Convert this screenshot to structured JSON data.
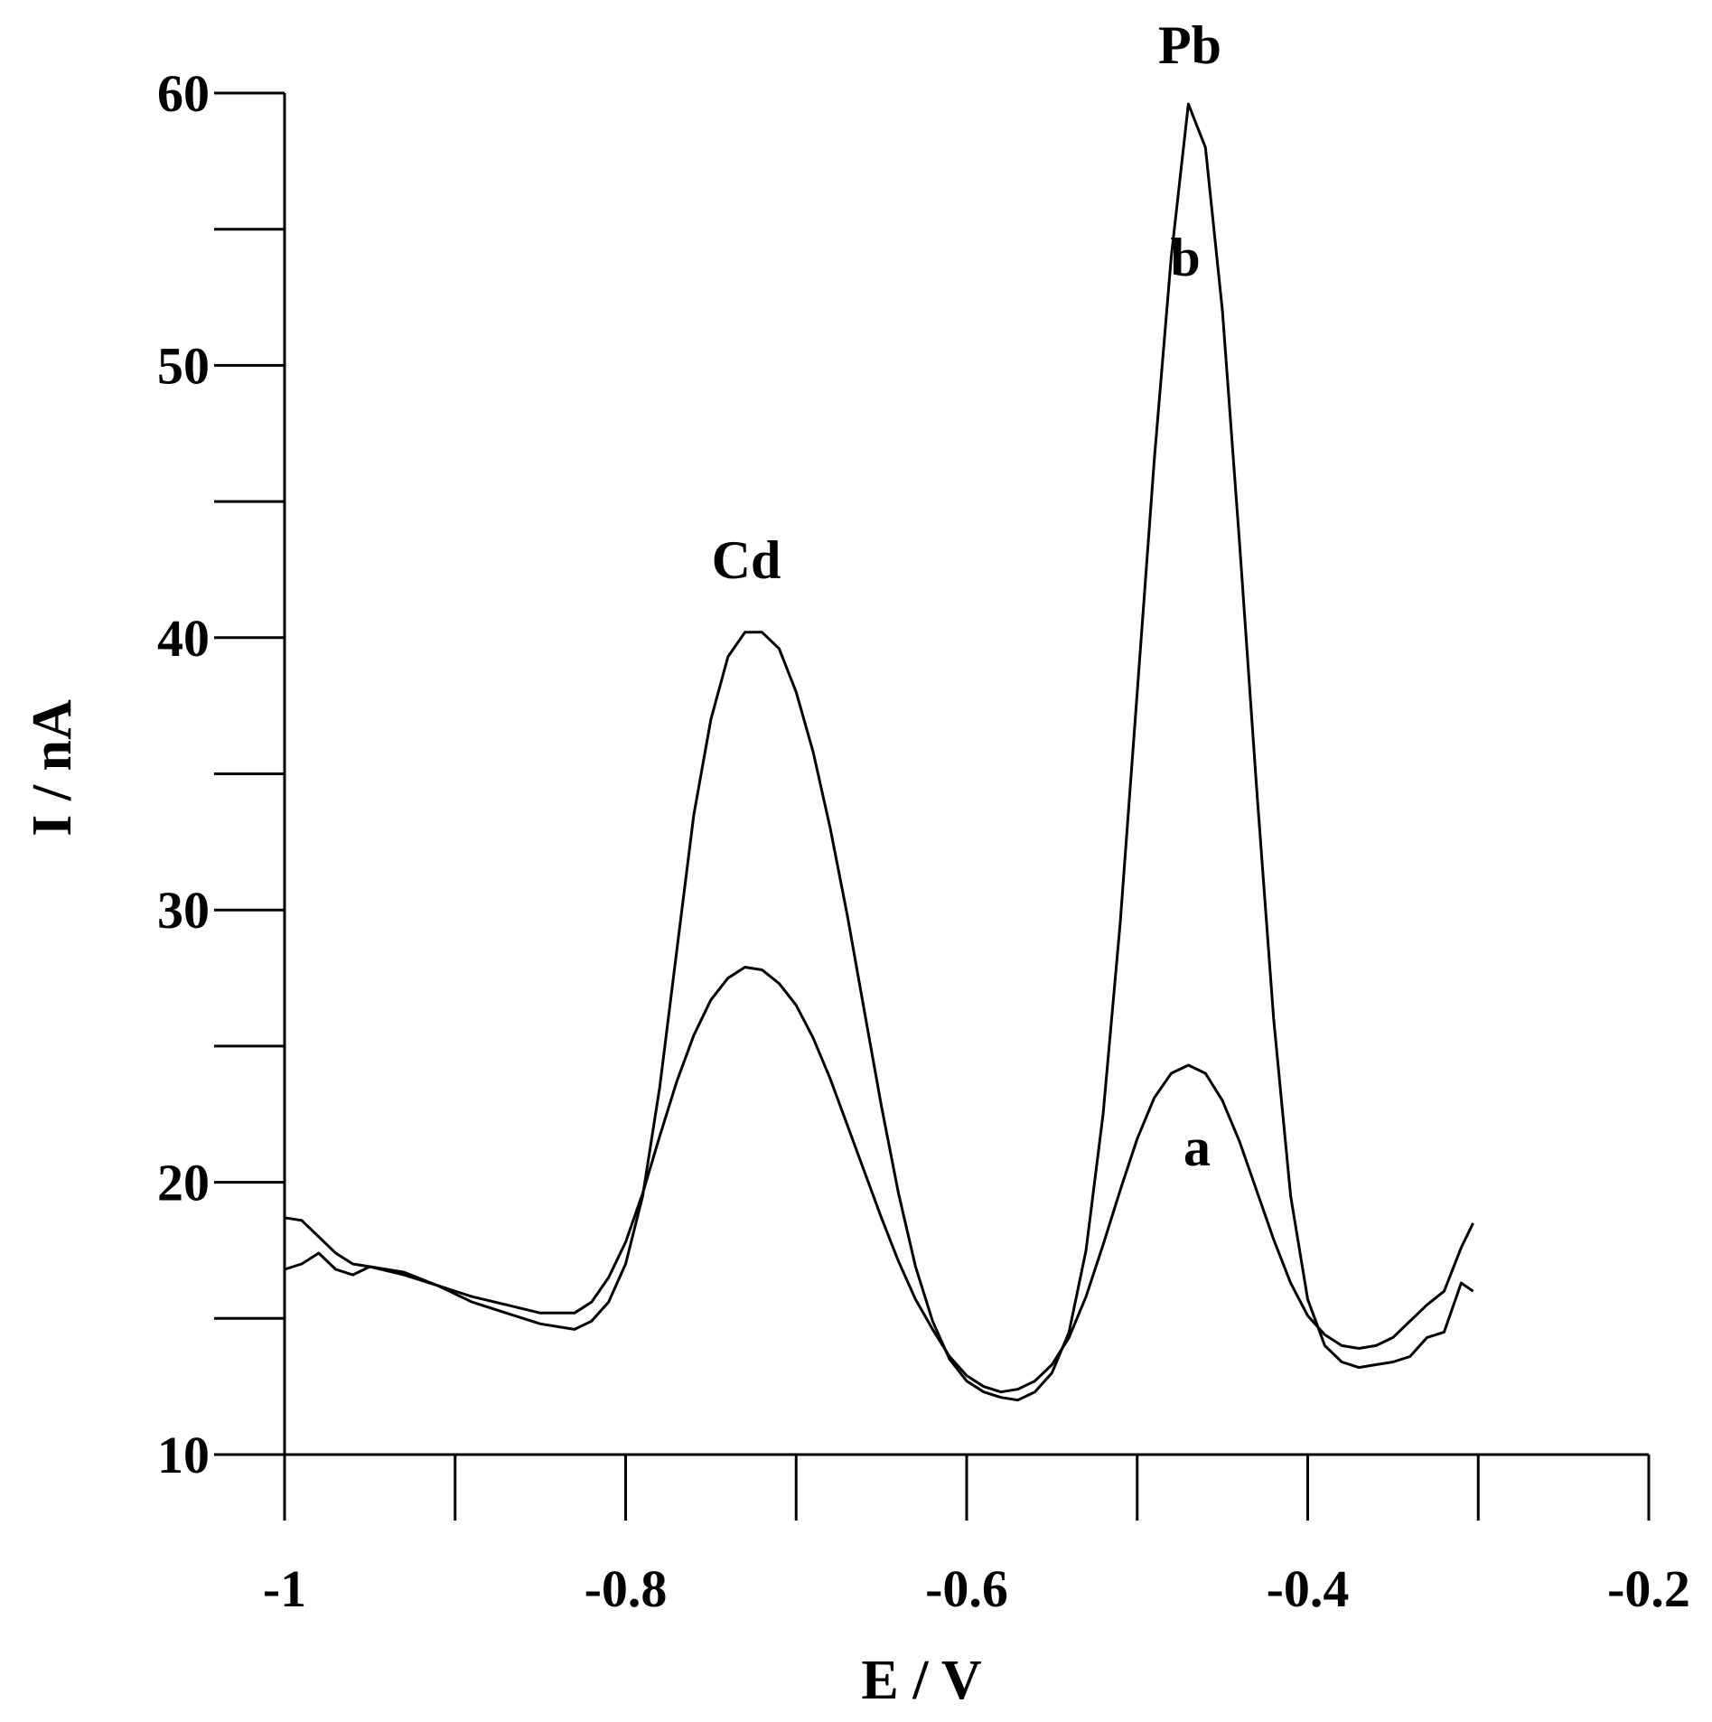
{
  "chart_data": {
    "type": "line",
    "xlabel": "E / V",
    "ylabel": "I / nA",
    "x": [
      -1,
      -0.99,
      -0.98,
      -0.97,
      -0.96,
      -0.95,
      -0.93,
      -0.91,
      -0.89,
      -0.87,
      -0.85,
      -0.83,
      -0.82,
      -0.81,
      -0.8,
      -0.79,
      -0.78,
      -0.77,
      -0.76,
      -0.75,
      -0.74,
      -0.73,
      -0.72,
      -0.71,
      -0.7,
      -0.69,
      -0.68,
      -0.67,
      -0.66,
      -0.65,
      -0.64,
      -0.63,
      -0.62,
      -0.61,
      -0.6,
      -0.59,
      -0.58,
      -0.57,
      -0.56,
      -0.55,
      -0.54,
      -0.53,
      -0.52,
      -0.51,
      -0.5,
      -0.49,
      -0.48,
      -0.47,
      -0.46,
      -0.45,
      -0.44,
      -0.43,
      -0.42,
      -0.41,
      -0.4,
      -0.39,
      -0.38,
      -0.37,
      -0.36,
      -0.35,
      -0.34,
      -0.33,
      -0.32,
      -0.31,
      -0.303
    ],
    "series": [
      {
        "name": "a",
        "color": "#000000",
        "values": [
          18.7,
          18.6,
          18.0,
          17.4,
          17.0,
          16.9,
          16.6,
          16.2,
          15.8,
          15.5,
          15.2,
          15.2,
          15.6,
          16.5,
          17.8,
          19.6,
          21.7,
          23.7,
          25.4,
          26.7,
          27.5,
          27.9,
          27.8,
          27.3,
          26.5,
          25.3,
          23.8,
          22.1,
          20.4,
          18.7,
          17.1,
          15.7,
          14.6,
          13.6,
          12.9,
          12.5,
          12.3,
          12.4,
          12.7,
          13.3,
          14.3,
          15.8,
          17.7,
          19.7,
          21.6,
          23.1,
          24.0,
          24.3,
          24.0,
          23.0,
          21.5,
          19.7,
          17.9,
          16.3,
          15.1,
          14.4,
          14.0,
          13.9,
          14.0,
          14.3,
          14.9,
          15.5,
          16.0,
          17.6,
          18.5
        ]
      },
      {
        "name": "b",
        "color": "#000000",
        "values": [
          16.8,
          17.0,
          17.4,
          16.8,
          16.6,
          16.9,
          16.7,
          16.2,
          15.6,
          15.2,
          14.8,
          14.6,
          14.9,
          15.6,
          17.0,
          19.5,
          23.5,
          28.5,
          33.5,
          37.0,
          39.3,
          40.2,
          40.2,
          39.6,
          38.0,
          35.8,
          33.0,
          29.8,
          26.3,
          22.8,
          19.6,
          16.9,
          14.9,
          13.5,
          12.7,
          12.3,
          12.1,
          12.0,
          12.3,
          13.0,
          14.5,
          17.5,
          22.5,
          29.5,
          38.0,
          46.5,
          54.0,
          59.6,
          58.0,
          52.0,
          43.5,
          34.5,
          26.0,
          19.5,
          15.7,
          14.0,
          13.4,
          13.2,
          13.3,
          13.4,
          13.6,
          14.3,
          14.5,
          16.3,
          16.0
        ]
      }
    ],
    "annotations": [
      "Cd",
      "Pb"
    ],
    "xlim": [
      -1,
      -0.2
    ],
    "xticks": [
      -1,
      -0.8,
      -0.6,
      -0.4,
      -0.2
    ],
    "xminorticks": [
      -0.9,
      -0.7,
      -0.5,
      -0.3
    ],
    "ylim": [
      10,
      60
    ],
    "yticks": [
      10,
      20,
      30,
      40,
      50,
      60
    ],
    "yminorticks": [
      15,
      25,
      35,
      45,
      55
    ]
  }
}
